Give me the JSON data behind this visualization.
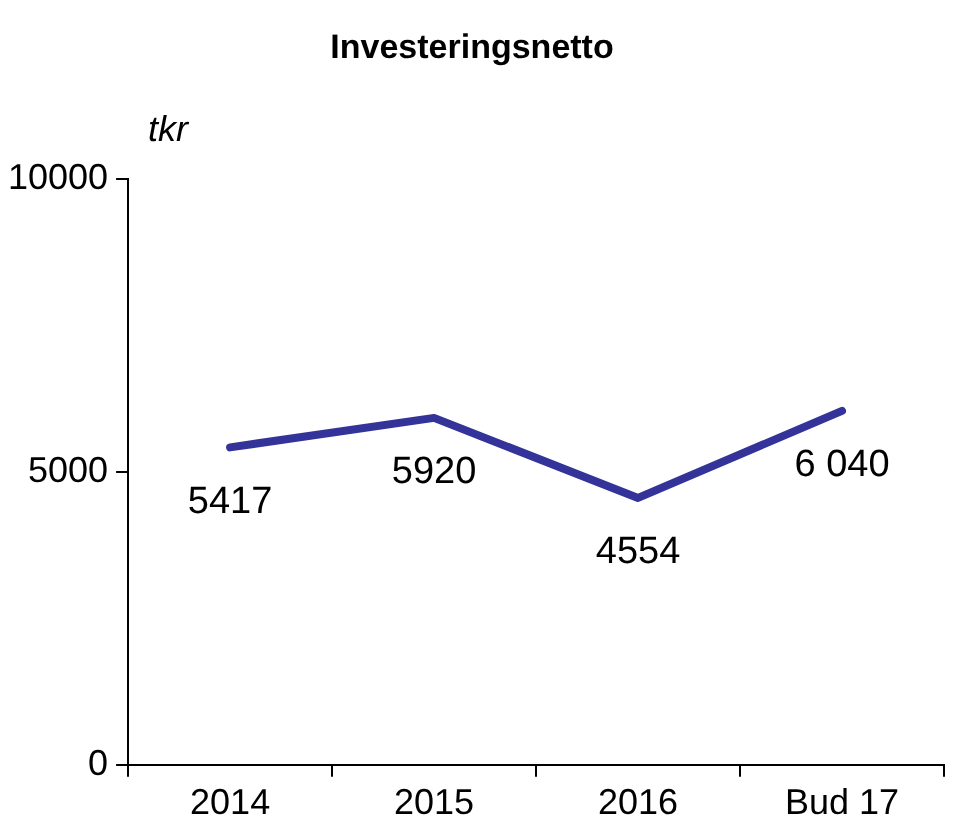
{
  "chart_data": {
    "type": "line",
    "title": "Investeringsnetto",
    "ylabel": "tkr",
    "categories": [
      "2014",
      "2015",
      "2016",
      "Bud 17"
    ],
    "series": [
      {
        "color": "#333399",
        "values": [
          5417,
          5920,
          4554,
          6040
        ],
        "value_labels": [
          "5417",
          "5920",
          "4554",
          "6 040"
        ]
      }
    ],
    "ylim": [
      0,
      10000
    ],
    "yticks": [
      0,
      5000,
      10000
    ],
    "grid": false,
    "legend": false,
    "marker": "none",
    "line_style": "solid"
  }
}
